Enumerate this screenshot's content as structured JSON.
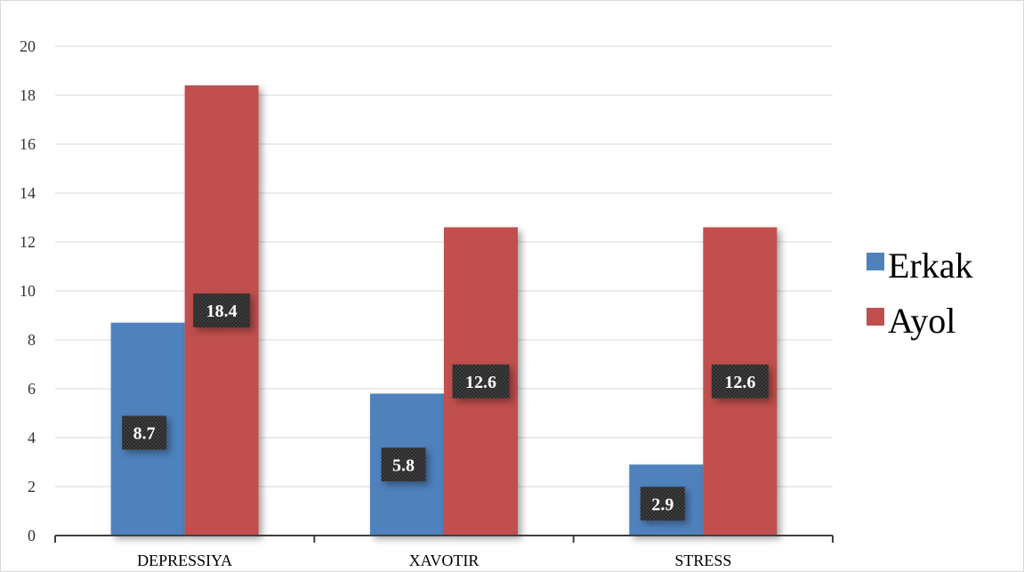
{
  "chart_data": {
    "type": "bar",
    "categories": [
      "DEPRESSIYA",
      "XAVOTIR",
      "STRESS"
    ],
    "series": [
      {
        "name": "Erkak",
        "values": [
          8.7,
          5.8,
          2.9
        ],
        "labels": [
          "8.7",
          "5.8",
          "2.9"
        ],
        "color": "#4f81bd"
      },
      {
        "name": "Ayol",
        "values": [
          18.4,
          12.6,
          12.6
        ],
        "labels": [
          "18.4",
          "12.6",
          "12.6"
        ],
        "color": "#c0504d"
      }
    ],
    "yticks": [
      "0",
      "2",
      "4",
      "6",
      "8",
      "10",
      "12",
      "14",
      "16",
      "18",
      "20"
    ],
    "ylim": [
      0,
      20
    ],
    "grid": true,
    "legend": "right",
    "title": "",
    "xlabel": "",
    "ylabel": ""
  }
}
